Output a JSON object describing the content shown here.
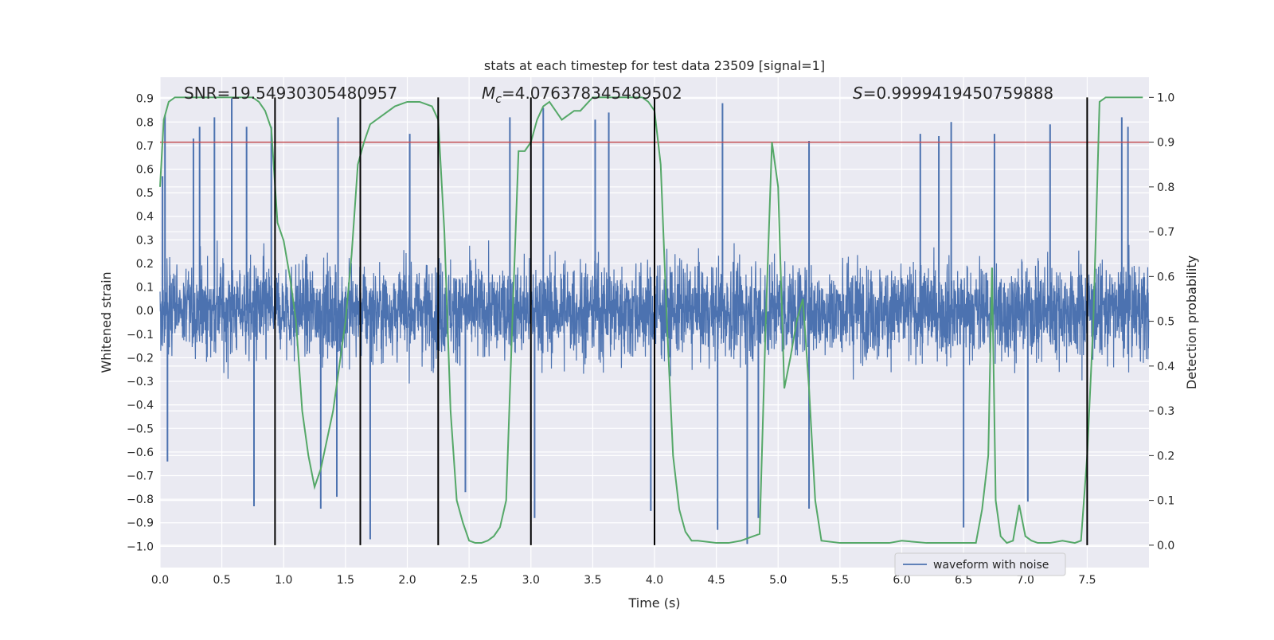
{
  "chart_data": {
    "type": "line",
    "title": "stats at each timestep for test data 23509 [signal=1]",
    "xlabel": "Time (s)",
    "ylabel": "Whitened strain",
    "y2label": "Detection probability",
    "xlim": [
      0.0,
      8.0
    ],
    "ylim": [
      -1.09,
      0.99
    ],
    "y2lim": [
      -0.05,
      1.045
    ],
    "x_ticks": [
      0.0,
      0.5,
      1.0,
      1.5,
      2.0,
      2.5,
      3.0,
      3.5,
      4.0,
      4.5,
      5.0,
      5.5,
      6.0,
      6.5,
      7.0,
      7.5
    ],
    "x_tick_labels": [
      "0.0",
      "0.5",
      "1.0",
      "1.5",
      "2.0",
      "2.5",
      "3.0",
      "3.5",
      "4.0",
      "4.5",
      "5.0",
      "5.5",
      "6.0",
      "6.5",
      "7.0",
      "7.5"
    ],
    "y_ticks": [
      -1.0,
      -0.9,
      -0.8,
      -0.7,
      -0.6,
      -0.5,
      -0.4,
      -0.3,
      -0.2,
      -0.1,
      0.0,
      0.1,
      0.2,
      0.3,
      0.4,
      0.5,
      0.6,
      0.7,
      0.8,
      0.9
    ],
    "y_tick_labels": [
      "−1.0",
      "−0.9",
      "−0.8",
      "−0.7",
      "−0.6",
      "−0.5",
      "−0.4",
      "−0.3",
      "−0.2",
      "−0.1",
      "0.0",
      "0.1",
      "0.2",
      "0.3",
      "0.4",
      "0.5",
      "0.6",
      "0.7",
      "0.8",
      "0.9"
    ],
    "y2_ticks": [
      0.0,
      0.1,
      0.2,
      0.3,
      0.4,
      0.5,
      0.6,
      0.7,
      0.8,
      0.9,
      1.0
    ],
    "y2_tick_labels": [
      "0.0",
      "0.1",
      "0.2",
      "0.3",
      "0.4",
      "0.5",
      "0.6",
      "0.7",
      "0.8",
      "0.9",
      "1.0"
    ],
    "threshold": 0.9,
    "annotations": {
      "snr": "SNR=19.54930305480957",
      "mc_symbol": "M",
      "mc_sub": "c",
      "mc_value": "=4.076378345489502",
      "s_symbol": "S",
      "s_value": "=0.9999419450759888"
    },
    "legend": {
      "label": "waveform with noise",
      "loc": "lower right"
    },
    "vlines": [
      0.93,
      1.62,
      2.25,
      3.0,
      4.0,
      7.5
    ],
    "waveform": {
      "name": "waveform with noise",
      "color": "#4c72b0",
      "typical_amplitude": 0.4,
      "peaks": [
        {
          "t": 0.02,
          "v": 0.57
        },
        {
          "t": 0.04,
          "v": 0.83
        },
        {
          "t": 0.06,
          "v": -0.64
        },
        {
          "t": 0.27,
          "v": 0.73
        },
        {
          "t": 0.32,
          "v": 0.78
        },
        {
          "t": 0.44,
          "v": 0.82
        },
        {
          "t": 0.58,
          "v": 0.9
        },
        {
          "t": 0.7,
          "v": 0.78
        },
        {
          "t": 0.76,
          "v": -0.83
        },
        {
          "t": 0.9,
          "v": 0.78
        },
        {
          "t": 1.3,
          "v": -0.84
        },
        {
          "t": 1.43,
          "v": -0.79
        },
        {
          "t": 1.44,
          "v": 0.82
        },
        {
          "t": 1.7,
          "v": -0.97
        },
        {
          "t": 2.02,
          "v": 0.75
        },
        {
          "t": 2.47,
          "v": -0.77
        },
        {
          "t": 2.83,
          "v": 0.82
        },
        {
          "t": 3.03,
          "v": -0.88
        },
        {
          "t": 3.1,
          "v": 0.86
        },
        {
          "t": 3.52,
          "v": 0.81
        },
        {
          "t": 3.63,
          "v": 0.84
        },
        {
          "t": 3.97,
          "v": -0.85
        },
        {
          "t": 4.51,
          "v": -0.93
        },
        {
          "t": 4.55,
          "v": 0.88
        },
        {
          "t": 4.75,
          "v": -0.99
        },
        {
          "t": 4.84,
          "v": -0.88
        },
        {
          "t": 5.25,
          "v": -0.84
        },
        {
          "t": 5.25,
          "v": 0.72
        },
        {
          "t": 6.15,
          "v": 0.75
        },
        {
          "t": 6.3,
          "v": 0.74
        },
        {
          "t": 6.4,
          "v": 0.8
        },
        {
          "t": 6.5,
          "v": -0.92
        },
        {
          "t": 6.75,
          "v": 0.75
        },
        {
          "t": 7.02,
          "v": -0.81
        },
        {
          "t": 7.2,
          "v": 0.79
        },
        {
          "t": 7.78,
          "v": 0.82
        },
        {
          "t": 7.83,
          "v": 0.78
        }
      ]
    },
    "probability": {
      "name": "Detection probability",
      "color": "#55a868",
      "x": [
        0.0,
        0.03,
        0.07,
        0.12,
        0.2,
        0.4,
        0.6,
        0.75,
        0.8,
        0.85,
        0.9,
        0.95,
        1.0,
        1.05,
        1.1,
        1.15,
        1.2,
        1.25,
        1.3,
        1.4,
        1.5,
        1.55,
        1.6,
        1.65,
        1.7,
        1.8,
        1.9,
        2.0,
        2.1,
        2.2,
        2.25,
        2.3,
        2.35,
        2.4,
        2.45,
        2.5,
        2.55,
        2.6,
        2.65,
        2.7,
        2.75,
        2.8,
        2.85,
        2.9,
        2.95,
        3.0,
        3.05,
        3.1,
        3.15,
        3.2,
        3.25,
        3.3,
        3.35,
        3.4,
        3.5,
        3.6,
        3.7,
        3.8,
        3.9,
        3.95,
        4.0,
        4.05,
        4.1,
        4.15,
        4.2,
        4.25,
        4.3,
        4.35,
        4.5,
        4.6,
        4.7,
        4.8,
        4.85,
        4.9,
        4.95,
        5.0,
        5.05,
        5.1,
        5.15,
        5.2,
        5.25,
        5.3,
        5.35,
        5.5,
        5.7,
        5.9,
        6.0,
        6.2,
        6.3,
        6.4,
        6.5,
        6.6,
        6.65,
        6.7,
        6.73,
        6.76,
        6.8,
        6.85,
        6.9,
        6.95,
        7.0,
        7.05,
        7.1,
        7.2,
        7.3,
        7.4,
        7.45,
        7.5,
        7.55,
        7.6,
        7.65,
        7.7,
        7.8,
        7.9,
        7.95
      ],
      "y": [
        0.8,
        0.95,
        0.99,
        1.0,
        1.0,
        1.0,
        1.0,
        1.0,
        0.99,
        0.97,
        0.93,
        0.72,
        0.68,
        0.6,
        0.5,
        0.3,
        0.2,
        0.13,
        0.17,
        0.3,
        0.5,
        0.65,
        0.85,
        0.9,
        0.94,
        0.96,
        0.98,
        0.99,
        0.99,
        0.98,
        0.95,
        0.7,
        0.3,
        0.1,
        0.05,
        0.01,
        0.005,
        0.005,
        0.01,
        0.02,
        0.04,
        0.1,
        0.5,
        0.88,
        0.88,
        0.9,
        0.95,
        0.98,
        0.99,
        0.97,
        0.95,
        0.96,
        0.97,
        0.97,
        1.0,
        1.0,
        1.0,
        1.0,
        1.0,
        0.99,
        0.97,
        0.85,
        0.5,
        0.2,
        0.08,
        0.03,
        0.01,
        0.01,
        0.005,
        0.005,
        0.01,
        0.02,
        0.025,
        0.5,
        0.9,
        0.8,
        0.35,
        0.42,
        0.5,
        0.55,
        0.35,
        0.1,
        0.01,
        0.005,
        0.005,
        0.005,
        0.01,
        0.005,
        0.005,
        0.005,
        0.005,
        0.005,
        0.08,
        0.2,
        0.62,
        0.1,
        0.02,
        0.005,
        0.01,
        0.09,
        0.02,
        0.01,
        0.005,
        0.005,
        0.01,
        0.005,
        0.01,
        0.2,
        0.5,
        0.99,
        1.0,
        1.0,
        1.0,
        1.0,
        1.0
      ]
    }
  }
}
